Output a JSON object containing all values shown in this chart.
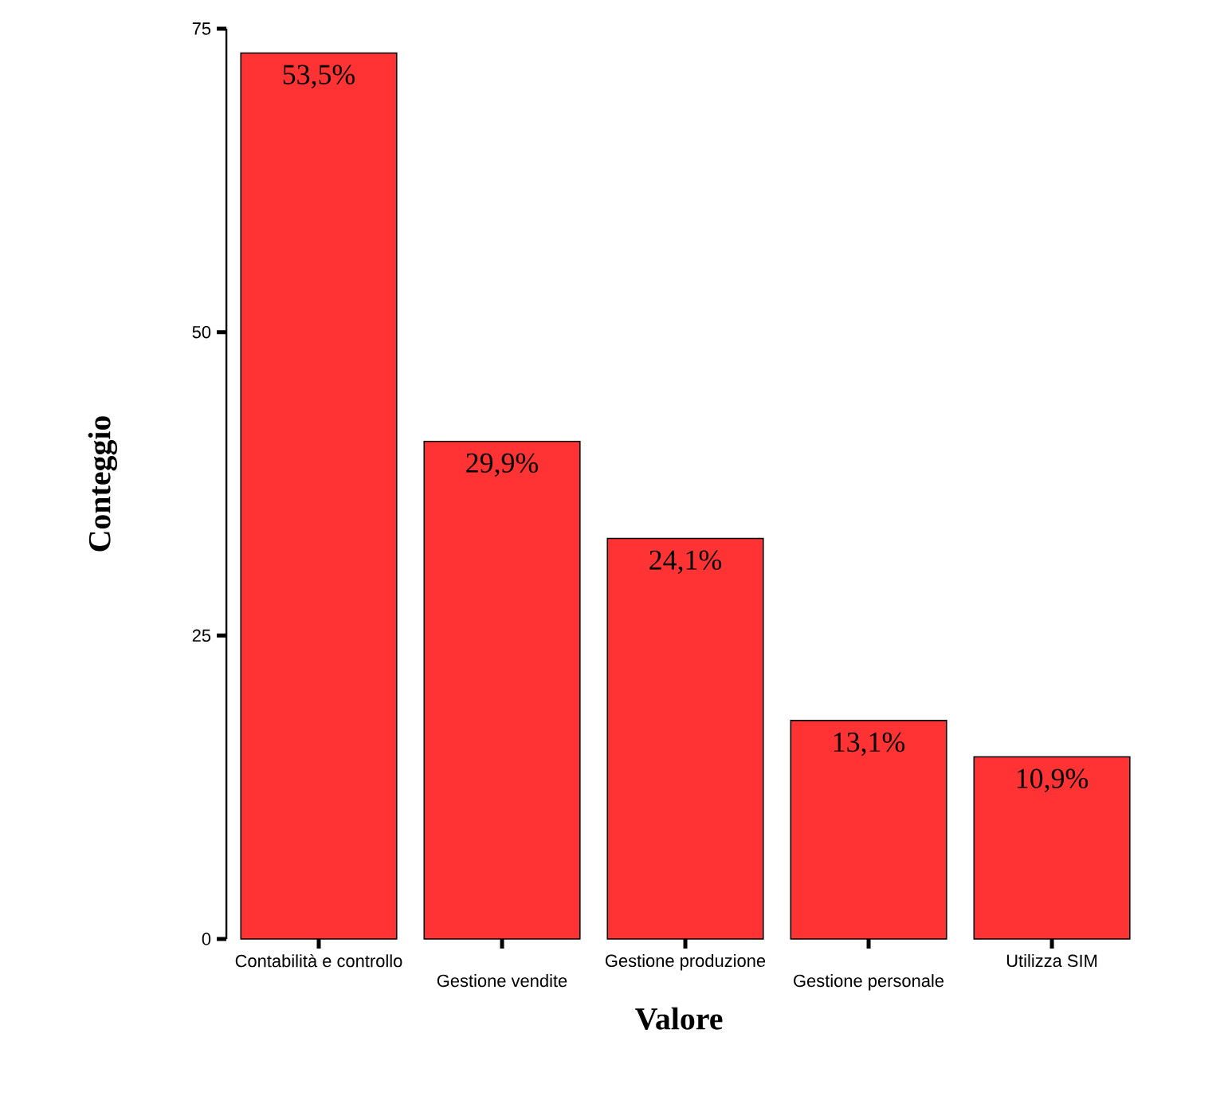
{
  "chart_data": {
    "type": "bar",
    "xlabel": "Valore",
    "ylabel": "Conteggio",
    "categories": [
      "Contabilità e controllo",
      "Gestione vendite",
      "Gestione produzione",
      "Gestione personale",
      "Utilizza SIM"
    ],
    "values": [
      73,
      41,
      33,
      18,
      15
    ],
    "annotations": [
      {
        "text": "53,5%",
        "x": "Contabilità e controllo",
        "y": 73
      },
      {
        "text": "29,9%",
        "x": "Gestione vendite",
        "y": 41
      },
      {
        "text": "24,1%",
        "x": "Gestione produzione",
        "y": 33
      },
      {
        "text": "13,1%",
        "x": "Gestione personale",
        "y": 18
      },
      {
        "text": "10,9%",
        "x": "Utilizza SIM",
        "y": 15
      }
    ],
    "color": "#ff3333",
    "ylim": [
      0,
      75
    ],
    "yticks": [
      0,
      25,
      50,
      75
    ]
  }
}
